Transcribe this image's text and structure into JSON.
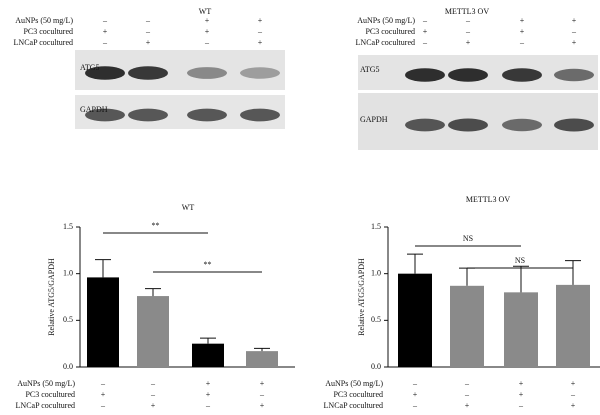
{
  "blots": [
    {
      "title": "WT",
      "rows": [
        {
          "label": "AuNPs (50 mg/L)",
          "signs": [
            "–",
            "–",
            "+",
            "+"
          ]
        },
        {
          "label": "PC3 cocultured",
          "signs": [
            "+",
            "–",
            "+",
            "–"
          ]
        },
        {
          "label": "LNCaP cocultured",
          "signs": [
            "–",
            "+",
            "–",
            "+"
          ]
        }
      ],
      "bands": [
        "ATG5",
        "GAPDH"
      ]
    },
    {
      "title": "METTL3 OV",
      "rows": [
        {
          "label": "AuNPs (50 mg/L)",
          "signs": [
            "–",
            "–",
            "+",
            "+"
          ]
        },
        {
          "label": "PC3 cocultured",
          "signs": [
            "+",
            "–",
            "+",
            "–"
          ]
        },
        {
          "label": "LNCaP cocultured",
          "signs": [
            "–",
            "+",
            "–",
            "+"
          ]
        }
      ],
      "bands": [
        "ATG5",
        "GAPDH"
      ]
    }
  ],
  "chart_data": [
    {
      "type": "bar",
      "title": "WT",
      "y_label": "Relative ATG5/GAPDH",
      "ylim": [
        0,
        1.5
      ],
      "yticks": [
        {
          "value": 0,
          "label": "0.0"
        },
        {
          "value": 0.5,
          "label": "0.5"
        },
        {
          "value": 1,
          "label": "1.0"
        },
        {
          "value": 1.5,
          "label": "1.5"
        }
      ],
      "values": [
        0.96,
        0.76,
        0.25,
        0.17
      ],
      "errors": [
        0.19,
        0.08,
        0.06,
        0.03
      ],
      "colors": [
        "#000000",
        "#8a8a8a",
        "#000000",
        "#8a8a8a"
      ],
      "annotations": [
        {
          "text": "**",
          "from": 0,
          "to": 2
        },
        {
          "text": "**",
          "from": 1,
          "to": 3
        }
      ],
      "conditions": [
        {
          "label": "AuNPs (50 mg/L)",
          "signs": [
            "–",
            "–",
            "+",
            "+"
          ]
        },
        {
          "label": "PC3 cocultured",
          "signs": [
            "+",
            "–",
            "+",
            "–"
          ]
        },
        {
          "label": "LNCaP cocultured",
          "signs": [
            "–",
            "+",
            "–",
            "+"
          ]
        }
      ]
    },
    {
      "type": "bar",
      "title": "METTL3 OV",
      "y_label": "Relative ATG5/GAPDH",
      "ylim": [
        0,
        1.5
      ],
      "yticks": [
        {
          "value": 0,
          "label": "0.0"
        },
        {
          "value": 0.5,
          "label": "0.5"
        },
        {
          "value": 1,
          "label": "1.0"
        },
        {
          "value": 1.5,
          "label": "1.5"
        }
      ],
      "values": [
        1.0,
        0.87,
        0.8,
        0.88
      ],
      "errors": [
        0.21,
        0.19,
        0.28,
        0.26
      ],
      "colors": [
        "#000000",
        "#8a8a8a",
        "#8a8a8a",
        "#8a8a8a"
      ],
      "annotations": [
        {
          "text": "NS",
          "from": 0,
          "to": 2
        },
        {
          "text": "NS",
          "from": 1,
          "to": 3
        }
      ],
      "conditions": [
        {
          "label": "AuNPs (50 mg/L)",
          "signs": [
            "–",
            "–",
            "+",
            "+"
          ]
        },
        {
          "label": "PC3 cocultured",
          "signs": [
            "+",
            "–",
            "+",
            "–"
          ]
        },
        {
          "label": "LNCaP cocultured",
          "signs": [
            "–",
            "+",
            "–",
            "+"
          ]
        }
      ]
    }
  ]
}
